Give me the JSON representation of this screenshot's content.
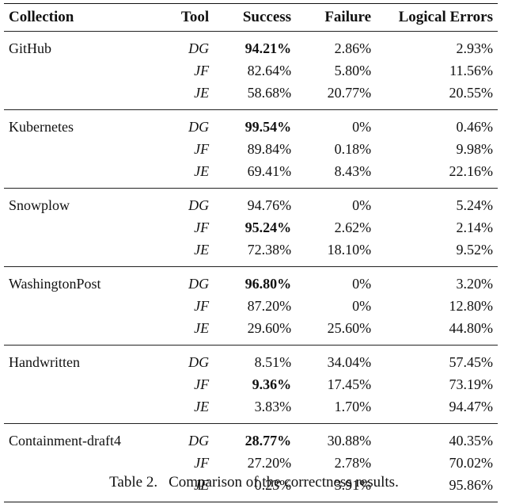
{
  "table": {
    "headers": [
      "Collection",
      "Tool",
      "Success",
      "Failure",
      "Logical Errors"
    ],
    "groups": [
      {
        "collection": "GitHub",
        "rows": [
          {
            "tool": "DG",
            "success": "94.21%",
            "failure": "2.86%",
            "logical": "2.93%",
            "best": true
          },
          {
            "tool": "JF",
            "success": "82.64%",
            "failure": "5.80%",
            "logical": "11.56%",
            "best": false
          },
          {
            "tool": "JE",
            "success": "58.68%",
            "failure": "20.77%",
            "logical": "20.55%",
            "best": false
          }
        ]
      },
      {
        "collection": "Kubernetes",
        "rows": [
          {
            "tool": "DG",
            "success": "99.54%",
            "failure": "0%",
            "logical": "0.46%",
            "best": true
          },
          {
            "tool": "JF",
            "success": "89.84%",
            "failure": "0.18%",
            "logical": "9.98%",
            "best": false
          },
          {
            "tool": "JE",
            "success": "69.41%",
            "failure": "8.43%",
            "logical": "22.16%",
            "best": false
          }
        ]
      },
      {
        "collection": "Snowplow",
        "rows": [
          {
            "tool": "DG",
            "success": "94.76%",
            "failure": "0%",
            "logical": "5.24%",
            "best": false
          },
          {
            "tool": "JF",
            "success": "95.24%",
            "failure": "2.62%",
            "logical": "2.14%",
            "best": true
          },
          {
            "tool": "JE",
            "success": "72.38%",
            "failure": "18.10%",
            "logical": "9.52%",
            "best": false
          }
        ]
      },
      {
        "collection": "WashingtonPost",
        "rows": [
          {
            "tool": "DG",
            "success": "96.80%",
            "failure": "0%",
            "logical": "3.20%",
            "best": true
          },
          {
            "tool": "JF",
            "success": "87.20%",
            "failure": "0%",
            "logical": "12.80%",
            "best": false
          },
          {
            "tool": "JE",
            "success": "29.60%",
            "failure": "25.60%",
            "logical": "44.80%",
            "best": false
          }
        ]
      },
      {
        "collection": "Handwritten",
        "rows": [
          {
            "tool": "DG",
            "success": "8.51%",
            "failure": "34.04%",
            "logical": "57.45%",
            "best": false
          },
          {
            "tool": "JF",
            "success": "9.36%",
            "failure": "17.45%",
            "logical": "73.19%",
            "best": true
          },
          {
            "tool": "JE",
            "success": "3.83%",
            "failure": "1.70%",
            "logical": "94.47%",
            "best": false
          }
        ]
      },
      {
        "collection": "Containment-draft4",
        "rows": [
          {
            "tool": "DG",
            "success": "28.77%",
            "failure": "30.88%",
            "logical": "40.35%",
            "best": true
          },
          {
            "tool": "JF",
            "success": "27.20%",
            "failure": "2.78%",
            "logical": "70.02%",
            "best": false
          },
          {
            "tool": "JE",
            "success": "0.23%",
            "failure": "3.91%",
            "logical": "95.86%",
            "best": false
          }
        ]
      }
    ]
  },
  "caption": {
    "label": "Table 2.",
    "text": "Comparison of the correctness results."
  }
}
